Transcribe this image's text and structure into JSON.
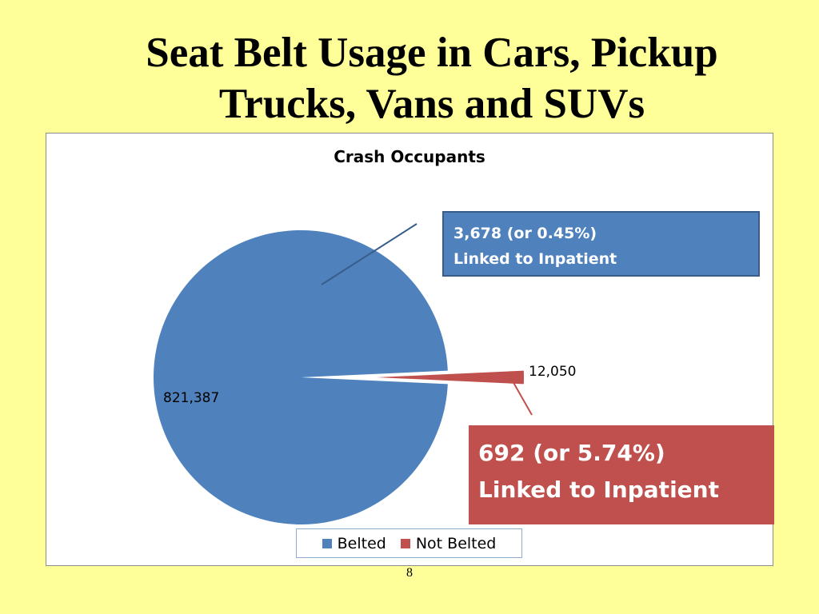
{
  "slide": {
    "title_line1": "Seat Belt Usage in Cars, Pickup",
    "title_line2": "Trucks, Vans and SUVs",
    "page_number": "8",
    "background": "#ffff99"
  },
  "chart_data": {
    "type": "pie",
    "title": "Crash Occupants",
    "categories": [
      "Belted",
      "Not Belted"
    ],
    "values": [
      821387,
      12050
    ],
    "data_labels": [
      "821,387",
      "12,050"
    ],
    "colors": [
      "#4f81bd",
      "#c0504d"
    ],
    "exploded": [
      false,
      true
    ],
    "legend_position": "bottom",
    "annotations": [
      {
        "series": "Belted",
        "line1": "3,678 (or 0.45%)",
        "line2": "Linked to Inpatient"
      },
      {
        "series": "Not Belted",
        "line1": "692 (or 5.74%)",
        "line2": "Linked to Inpatient"
      }
    ]
  }
}
